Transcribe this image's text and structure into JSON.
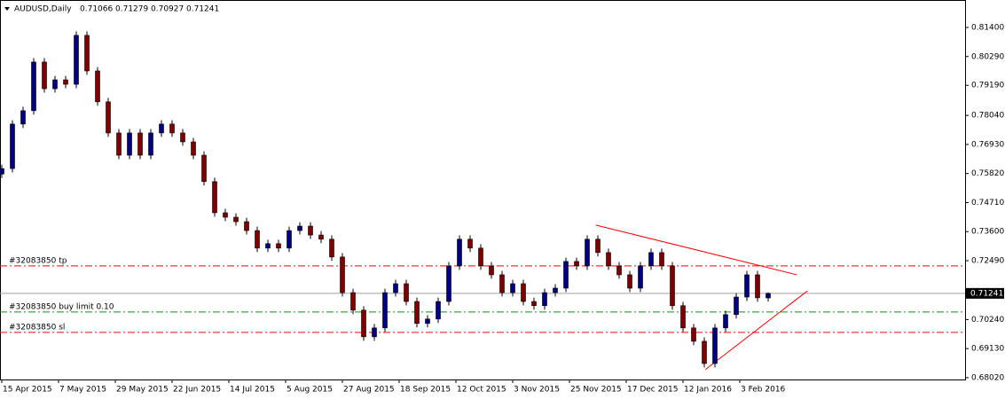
{
  "chart_data": {
    "type": "candlestick",
    "title": "AUDUSD,Daily",
    "ylim": [
      0.6795,
      0.8245
    ],
    "yticks": [
      {
        "value": 0.814,
        "label": "0.81400"
      },
      {
        "value": 0.8029,
        "label": "0.80290"
      },
      {
        "value": 0.7919,
        "label": "0.79190"
      },
      {
        "value": 0.7804,
        "label": "0.78040"
      },
      {
        "value": 0.7693,
        "label": "0.76930"
      },
      {
        "value": 0.7582,
        "label": "0.75820"
      },
      {
        "value": 0.7471,
        "label": "0.74710"
      },
      {
        "value": 0.736,
        "label": "0.73600"
      },
      {
        "value": 0.7249,
        "label": "0.72490"
      },
      {
        "value": 0.7024,
        "label": "0.70240"
      },
      {
        "value": 0.6913,
        "label": "0.69130"
      },
      {
        "value": 0.6802,
        "label": "0.68020"
      }
    ],
    "x_labels": [
      "15 Apr 2015",
      "7 May 2015",
      "29 May 2015",
      "22 Jun 2015",
      "14 Jul 2015",
      "5 Aug 2015",
      "27 Aug 2015",
      "18 Sep 2015",
      "12 Oct 2015",
      "3 Nov 2015",
      "25 Nov 2015",
      "17 Dec 2015",
      "12 Jan 2016",
      "3 Feb 2016"
    ],
    "up_color": "#000080",
    "down_color": "#800000",
    "open": [
      0.758,
      0.7601,
      0.7771,
      0.7822,
      0.8008,
      0.7906,
      0.794,
      0.7923,
      0.811,
      0.7974,
      0.7856,
      0.7737,
      0.7652,
      0.7737,
      0.7652,
      0.7737,
      0.7771,
      0.7737,
      0.7703,
      0.7652,
      0.7551,
      0.7432,
      0.7415,
      0.7398,
      0.7364,
      0.7297,
      0.7314,
      0.7297,
      0.7364,
      0.7381,
      0.7347,
      0.7331,
      0.7263,
      0.7127,
      0.706,
      0.6958,
      0.6992,
      0.7127,
      0.7161,
      0.7093,
      0.7009,
      0.7026,
      0.7093,
      0.7229,
      0.7331,
      0.7297,
      0.7229,
      0.7195,
      0.7127,
      0.7161,
      0.7093,
      0.7077,
      0.7127,
      0.7144,
      0.7246,
      0.7229,
      0.7331,
      0.728,
      0.7229,
      0.7195,
      0.7144,
      0.7229,
      0.728,
      0.7229,
      0.7077,
      0.6992,
      0.6941,
      0.6856,
      0.6992,
      0.7043,
      0.711,
      0.7195,
      0.71066
    ],
    "high": [
      0.7616,
      0.7786,
      0.7837,
      0.8023,
      0.8023,
      0.7955,
      0.7955,
      0.8125,
      0.8125,
      0.7989,
      0.7871,
      0.7752,
      0.7752,
      0.7752,
      0.7752,
      0.7786,
      0.7786,
      0.7752,
      0.7718,
      0.7667,
      0.7566,
      0.7447,
      0.743,
      0.7413,
      0.7379,
      0.7329,
      0.7329,
      0.7379,
      0.7396,
      0.7396,
      0.7362,
      0.7346,
      0.7278,
      0.7142,
      0.7075,
      0.7007,
      0.7142,
      0.7176,
      0.7176,
      0.7108,
      0.7041,
      0.7108,
      0.7244,
      0.7346,
      0.7346,
      0.7312,
      0.7244,
      0.721,
      0.7176,
      0.7176,
      0.7108,
      0.7142,
      0.7159,
      0.7261,
      0.7261,
      0.7346,
      0.7346,
      0.7295,
      0.7244,
      0.721,
      0.7244,
      0.7295,
      0.7295,
      0.7244,
      0.7092,
      0.7007,
      0.6956,
      0.7007,
      0.7058,
      0.7125,
      0.721,
      0.721,
      0.71279
    ],
    "low": [
      0.7565,
      0.7586,
      0.7756,
      0.7807,
      0.7891,
      0.7891,
      0.7908,
      0.7908,
      0.7959,
      0.7841,
      0.7722,
      0.7637,
      0.7637,
      0.7637,
      0.7637,
      0.7722,
      0.7722,
      0.7688,
      0.7637,
      0.7536,
      0.7417,
      0.74,
      0.7383,
      0.7349,
      0.7282,
      0.7282,
      0.7282,
      0.7282,
      0.7349,
      0.7332,
      0.7316,
      0.7248,
      0.7112,
      0.7045,
      0.6943,
      0.6943,
      0.6977,
      0.7112,
      0.7078,
      0.6994,
      0.6994,
      0.7011,
      0.7078,
      0.7214,
      0.7282,
      0.7214,
      0.718,
      0.7112,
      0.7112,
      0.7078,
      0.7062,
      0.7062,
      0.7112,
      0.7129,
      0.7214,
      0.7214,
      0.7265,
      0.7214,
      0.718,
      0.7129,
      0.7129,
      0.7214,
      0.7214,
      0.7062,
      0.6977,
      0.6926,
      0.6841,
      0.6841,
      0.6977,
      0.7028,
      0.7095,
      0.7092,
      0.70927
    ],
    "close": [
      0.7601,
      0.7771,
      0.7822,
      0.8008,
      0.7906,
      0.794,
      0.7923,
      0.811,
      0.7974,
      0.7856,
      0.7737,
      0.7652,
      0.7737,
      0.7652,
      0.7737,
      0.7771,
      0.7737,
      0.7703,
      0.7652,
      0.7551,
      0.7432,
      0.7415,
      0.7398,
      0.7364,
      0.7297,
      0.7314,
      0.7297,
      0.7364,
      0.7381,
      0.7347,
      0.7331,
      0.7263,
      0.7127,
      0.706,
      0.6958,
      0.6992,
      0.7127,
      0.7161,
      0.7093,
      0.7009,
      0.7026,
      0.7093,
      0.7229,
      0.7331,
      0.7297,
      0.7229,
      0.7195,
      0.7127,
      0.7161,
      0.7093,
      0.7077,
      0.7127,
      0.7144,
      0.7246,
      0.7229,
      0.7331,
      0.728,
      0.7229,
      0.7195,
      0.7144,
      0.7229,
      0.728,
      0.7229,
      0.7077,
      0.6992,
      0.6941,
      0.6856,
      0.6992,
      0.7043,
      0.711,
      0.7195,
      0.7107,
      0.71241
    ],
    "orders": [
      {
        "label": "#32083850 tp",
        "price": 0.7229,
        "color": "#ff0000"
      },
      {
        "label": "#32083850 buy limit 0.10",
        "price": 0.7053,
        "color": "#00a000"
      },
      {
        "label": "#32083850 sl",
        "price": 0.6975,
        "color": "#ff0000"
      }
    ],
    "trendlines": [
      {
        "points": [
          [
            55.8,
            0.7385
          ],
          [
            74.7,
            0.7195
          ]
        ],
        "color": "#ff0000"
      },
      {
        "points": [
          [
            66.1,
            0.6833
          ],
          [
            75.7,
            0.7134
          ]
        ],
        "color": "#ff0000"
      }
    ]
  }
}
